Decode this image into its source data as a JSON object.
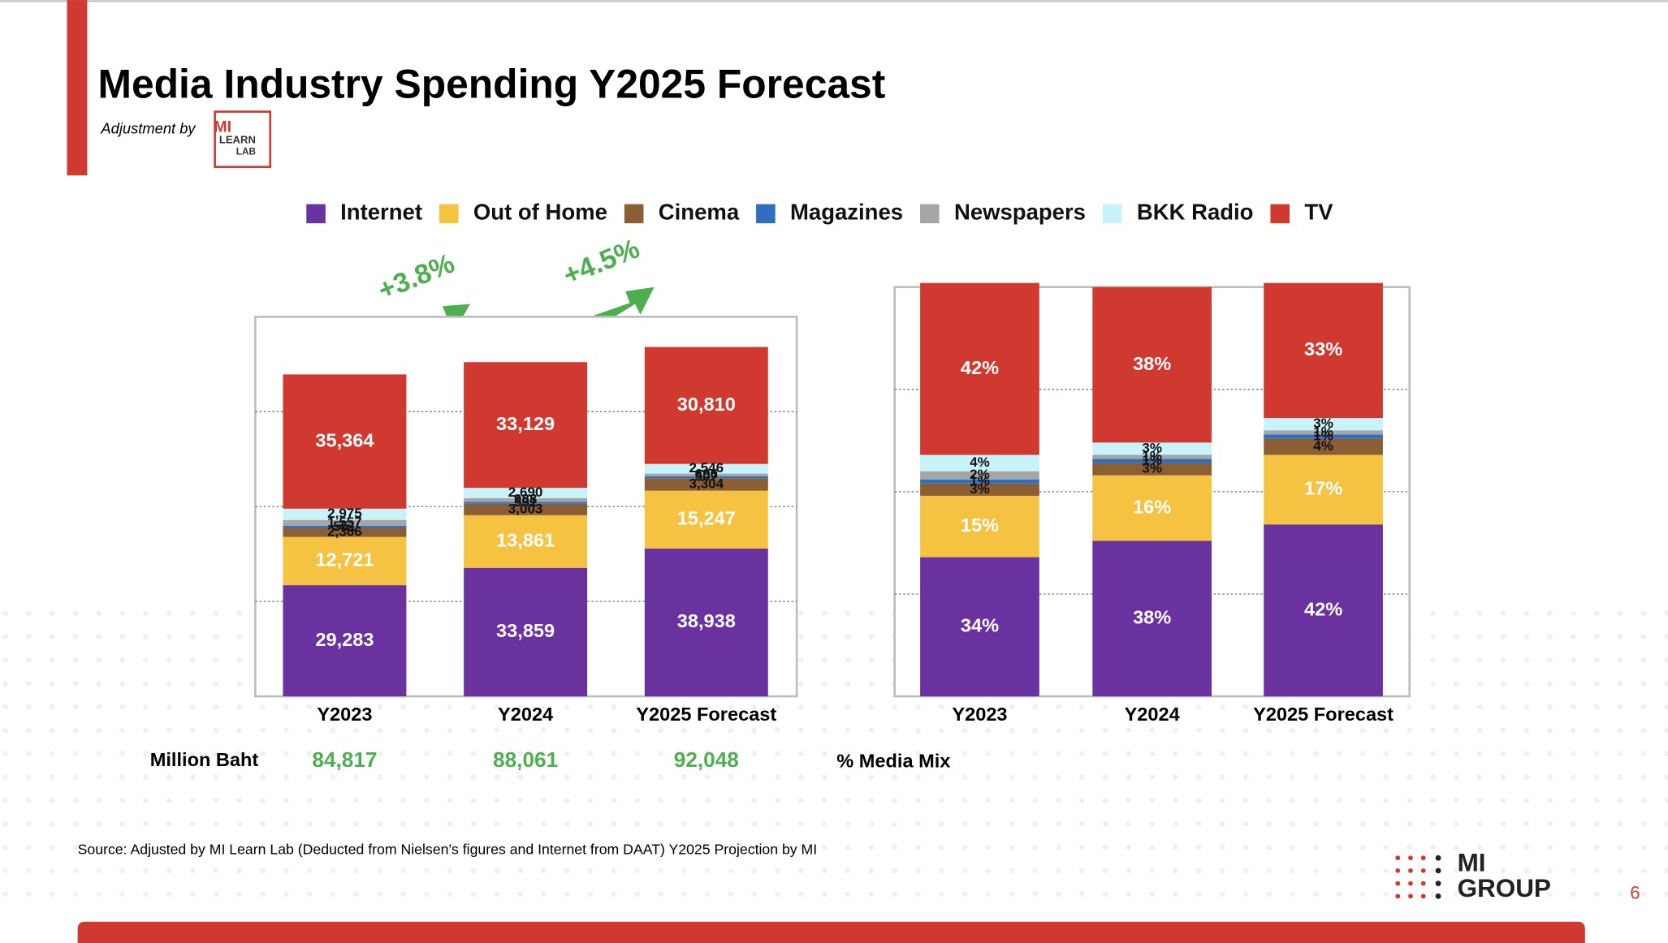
{
  "header": {
    "title": "Media Industry Spending Y2025 Forecast",
    "subtitle": "Adjustment by",
    "logo": [
      "MI",
      "LEARN",
      "LAB"
    ]
  },
  "chart_data": [
    {
      "type": "stacked_bar",
      "categories": [
        "Y2023",
        "Y2024",
        "Y2025 Forecast"
      ],
      "series": [
        {
          "name": "Internet",
          "color": "#6a329f",
          "values": [
            29283,
            33859,
            38938
          ],
          "value_labels": [
            "29,283",
            "33,859",
            "38,938"
          ]
        },
        {
          "name": "Out of Home",
          "color": "#f5c242",
          "values": [
            12721,
            13861,
            15247
          ],
          "value_labels": [
            "12,721",
            "13,861",
            "15,247"
          ]
        },
        {
          "name": "Cinema",
          "color": "#8b5e34",
          "values": [
            2366,
            3003,
            3304
          ],
          "value_labels": [
            "2,366",
            "3,003",
            "3,304"
          ]
        },
        {
          "name": "Magazines",
          "color": "#2e6fc2",
          "values": [
            551,
            531,
            507
          ],
          "value_labels": [
            "551",
            "531",
            "507"
          ]
        },
        {
          "name": "Newspapers",
          "color": "#a6a6a6",
          "values": [
            1557,
            988,
            696
          ],
          "value_labels": [
            "1,557",
            "988",
            "696"
          ]
        },
        {
          "name": "BKK Radio",
          "color": "#c8f3fb",
          "values": [
            2975,
            2690,
            2546
          ],
          "value_labels": [
            "2,975",
            "2,690",
            "2,546"
          ]
        },
        {
          "name": "TV",
          "color": "#d0392f",
          "values": [
            35364,
            33129,
            30810
          ],
          "value_labels": [
            "35,364",
            "33,129",
            "30,810"
          ]
        }
      ],
      "ylim": [
        0,
        100000
      ],
      "yticks": [
        0,
        25000,
        50000,
        75000,
        100000
      ],
      "grid": true,
      "legend": "top",
      "annotations": [
        "+3.8%",
        "+4.5%"
      ],
      "totals_title": "Million Baht",
      "totals": [
        84817,
        88061,
        92048
      ],
      "total_labels": [
        "84,817",
        "88,061",
        "92,048"
      ]
    },
    {
      "type": "stacked_bar",
      "categories": [
        "Y2023",
        "Y2024",
        "Y2025 Forecast"
      ],
      "series": [
        {
          "color": "#6a329f",
          "values": [
            34,
            38,
            42
          ],
          "value_labels": [
            "34%",
            "38%",
            "42%"
          ]
        },
        {
          "color": "#f5c242",
          "values": [
            15,
            16,
            17
          ],
          "value_labels": [
            "15%",
            "16%",
            "17%"
          ]
        },
        {
          "color": "#8b5e34",
          "values": [
            3,
            3,
            4
          ],
          "value_labels": [
            "3%",
            "3%",
            "4%"
          ]
        },
        {
          "color": "#2e6fc2",
          "values": [
            1,
            1,
            1
          ],
          "value_labels": [
            "1%",
            "1%",
            "1%"
          ]
        },
        {
          "color": "#a6a6a6",
          "values": [
            2,
            1,
            1
          ],
          "value_labels": [
            "2%",
            "1%",
            "1%"
          ]
        },
        {
          "color": "#c8f3fb",
          "values": [
            4,
            3,
            3
          ],
          "value_labels": [
            "4%",
            "3%",
            "3%"
          ]
        },
        {
          "color": "#d0392f",
          "values": [
            42,
            38,
            33
          ],
          "value_labels": [
            "42%",
            "38%",
            "33%"
          ]
        }
      ],
      "ylim": [
        0,
        100
      ],
      "yticks": [
        0,
        25,
        50,
        75,
        100
      ],
      "grid": true,
      "note": "% Media Mix"
    }
  ],
  "footer": {
    "source": "Source: Adjusted by MI Learn Lab (Deducted  from Nielsen’s figures and Internet from DAAT) Y2025 Projection by MI",
    "brand": [
      "MI",
      "GROUP"
    ],
    "page_number": "6"
  }
}
